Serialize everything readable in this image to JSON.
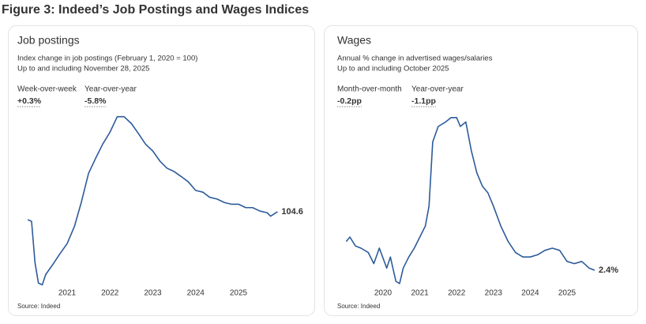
{
  "title": "Figure 3: Indeed’s Job Postings and Wages Indices",
  "chart_data": [
    {
      "type": "line",
      "title": "Job postings",
      "subtitle": [
        "Index change in job postings (February 1, 2020 = 100)",
        "Up to and including November 28, 2025"
      ],
      "stats": [
        {
          "label": "Week-over-week",
          "value": "+0.3%",
          "color": "#222222"
        },
        {
          "label": "Year-over-year",
          "value": "-5.8%",
          "color": "#b01c1c"
        }
      ],
      "x": [
        2020.08,
        2020.17,
        2020.25,
        2020.33,
        2020.42,
        2020.5,
        2020.67,
        2020.83,
        2021.0,
        2021.17,
        2021.33,
        2021.5,
        2021.67,
        2021.83,
        2022.0,
        2022.17,
        2022.33,
        2022.5,
        2022.67,
        2022.83,
        2023.0,
        2023.17,
        2023.33,
        2023.5,
        2023.67,
        2023.83,
        2024.0,
        2024.17,
        2024.33,
        2024.5,
        2024.67,
        2024.83,
        2025.0,
        2025.17,
        2025.33,
        2025.5,
        2025.67,
        2025.75,
        2025.91
      ],
      "values": [
        100,
        99,
        75,
        63,
        62,
        68,
        74,
        80,
        86,
        96,
        110,
        127,
        136,
        144,
        151,
        160,
        160,
        156,
        150,
        144,
        140,
        134,
        130,
        128,
        125,
        122,
        117,
        116,
        113,
        112,
        110,
        109,
        109,
        107,
        107,
        105,
        104,
        102,
        104.6
      ],
      "value_labels": [
        null,
        null,
        null,
        null,
        null,
        null,
        null,
        null,
        null,
        null,
        null,
        null,
        null,
        null,
        null,
        null,
        null,
        null,
        null,
        null,
        null,
        null,
        null,
        null,
        null,
        null,
        null,
        null,
        null,
        null,
        null,
        null,
        null,
        null,
        null,
        null,
        null,
        null,
        "104.6"
      ],
      "color": "#2d5b9a",
      "xlim": [
        2020.0,
        2026.0
      ],
      "xticks": [
        2021,
        2022,
        2023,
        2024,
        2025
      ],
      "ylim": [
        55,
        170
      ],
      "source": "Source: Indeed"
    },
    {
      "type": "line",
      "title": "Wages",
      "subtitle": [
        "Annual % change in advertised wages/salaries",
        "Up to and including October 2025"
      ],
      "stats": [
        {
          "label": "Month-over-month",
          "value": "-0.2pp",
          "color": "#222222"
        },
        {
          "label": "Year-over-year",
          "value": "-1.1pp",
          "color": "#b01c1c"
        }
      ],
      "x": [
        2019.0,
        2019.1,
        2019.25,
        2019.4,
        2019.6,
        2019.75,
        2019.9,
        2020.1,
        2020.2,
        2020.35,
        2020.45,
        2020.55,
        2020.7,
        2020.85,
        2021.0,
        2021.15,
        2021.25,
        2021.35,
        2021.5,
        2021.7,
        2021.85,
        2022.0,
        2022.1,
        2022.25,
        2022.4,
        2022.55,
        2022.7,
        2022.85,
        2023.0,
        2023.2,
        2023.4,
        2023.6,
        2023.8,
        2024.0,
        2024.2,
        2024.4,
        2024.6,
        2024.8,
        2025.0,
        2025.2,
        2025.4,
        2025.6,
        2025.75
      ],
      "values": [
        3.7,
        3.9,
        3.5,
        3.4,
        3.2,
        2.7,
        3.4,
        2.5,
        3.0,
        1.9,
        1.8,
        2.5,
        3.0,
        3.4,
        3.9,
        4.4,
        5.3,
        8.2,
        8.9,
        9.1,
        9.3,
        9.3,
        8.9,
        9.1,
        7.8,
        6.8,
        6.2,
        5.9,
        5.3,
        4.4,
        3.7,
        3.2,
        3.0,
        3.0,
        3.1,
        3.3,
        3.4,
        3.3,
        2.8,
        2.7,
        2.8,
        2.5,
        2.4
      ],
      "value_labels": [
        null,
        null,
        null,
        null,
        null,
        null,
        null,
        null,
        null,
        null,
        null,
        null,
        null,
        null,
        null,
        null,
        null,
        null,
        null,
        null,
        null,
        null,
        null,
        null,
        null,
        null,
        null,
        null,
        null,
        null,
        null,
        null,
        null,
        null,
        null,
        null,
        null,
        null,
        null,
        null,
        null,
        null,
        "2.4%"
      ],
      "color": "#2d5b9a",
      "xlim": [
        2019.0,
        2026.0
      ],
      "xticks": [
        2020,
        2021,
        2022,
        2023,
        2024,
        2025
      ],
      "ylim": [
        1.5,
        10
      ],
      "source": "Source: Indeed"
    }
  ]
}
